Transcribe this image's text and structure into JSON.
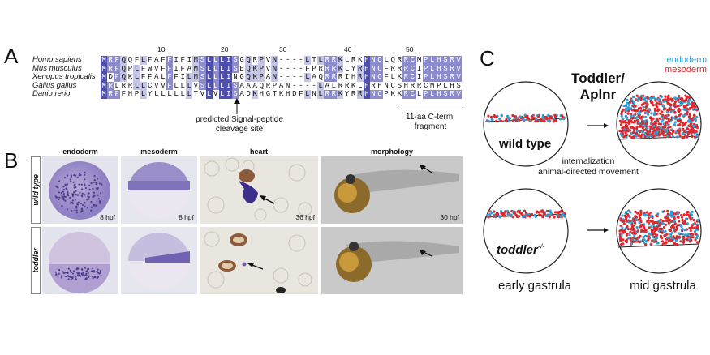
{
  "panel_labels": {
    "a": "A",
    "b": "B",
    "c": "C"
  },
  "panel_a": {
    "species": [
      "Homo sapiens",
      "Mus musculus",
      "Xenopus tropicalis",
      "Gallus gallus",
      "Danio rerio"
    ],
    "ticks": [
      "10",
      "20",
      "30",
      "40",
      "50"
    ],
    "sequences": [
      "MRFQQFLFAFFIFIMSLLLISGQRPVN----LTLRRKLRKHNCLQRRCMPLHSRVPFP",
      "MRFQPLFWVFFIFAMSLLLISEQKPVN----FPRRRKLYRHNCFRRRCIPLHSRVPFP",
      "MDFQKLFFALFFILMSLLLINGQKPAN----LAQRRRIHRHNCFLKRCIPLHSRVPFP",
      "MRLRRLLCVVFLLLVSLLLISAAAQRPAN----LALRRKLHRHNCSHRRCMPLHSRVPFP",
      "MRFFHPLYLLLLLLTVLVLISADKHGTKHDFLNLRRKYRRHNCPKKRCLPLHSRVPFP"
    ],
    "cleavage_label_line1": "predicted Signal-peptide",
    "cleavage_label_line2": "cleavage site",
    "cterm_label_line1": "11-aa C-term.",
    "cterm_label_line2": "fragment"
  },
  "panel_b": {
    "columns": [
      "endoderm",
      "mesoderm",
      "heart",
      "morphology"
    ],
    "rows": [
      "wild type",
      "toddler"
    ],
    "stage_labels_wt": [
      "8 hpf",
      "8 hpf",
      "36 hpf",
      "30 hpf"
    ]
  },
  "panel_c": {
    "title_line1": "Toddler/",
    "title_line2": "Aplnr",
    "legend_endoderm": "endoderm",
    "legend_mesoderm": "mesoderm",
    "wild_type_label": "wild type",
    "mutant_label": "toddler",
    "mutant_superscript": "-/-",
    "process_line1": "internalization",
    "process_line2": "animal-directed movement",
    "stage_early": "early gastrula",
    "stage_mid": "mid gastrula",
    "colors": {
      "endoderm": "#2a9fd6",
      "mesoderm": "#e0262b"
    }
  }
}
